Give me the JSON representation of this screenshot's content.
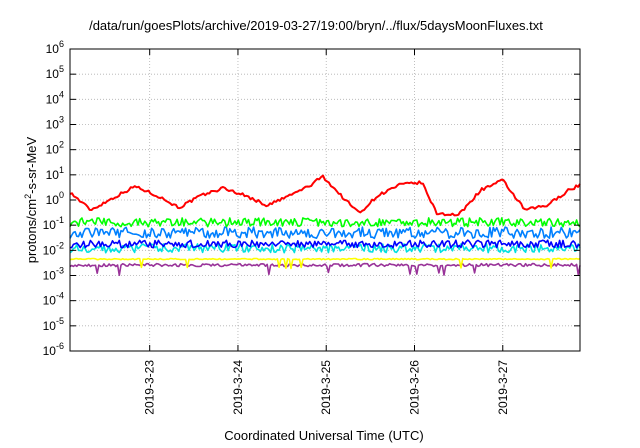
{
  "chart_data": {
    "type": "line",
    "title": "/data/run/goesPlots/archive/2019-03-27/19:00/bryn/../flux/5daysMoonFluxes.txt",
    "xlabel": "Coordinated Universal Time (UTC)",
    "ylabel": {
      "prefix": "protons/cm",
      "sup": "2",
      "suffix": "-s-sr-MeV"
    },
    "x_unit": "days (UTC)",
    "xlim": [
      "2019-03-22T02:20",
      "2019-03-27T21:00"
    ],
    "ylim": [
      1e-06,
      1000000.0
    ],
    "yscale": "log",
    "x_ticks": [
      "2019-3-23",
      "2019-3-24",
      "2019-3-25",
      "2019-3-26",
      "2019-3-27"
    ],
    "y_ticks": [
      {
        "base": "10",
        "exp": "-6"
      },
      {
        "base": "10",
        "exp": "-5"
      },
      {
        "base": "10",
        "exp": "-4"
      },
      {
        "base": "10",
        "exp": "-3"
      },
      {
        "base": "10",
        "exp": "-2"
      },
      {
        "base": "10",
        "exp": "-1"
      },
      {
        "base": "10",
        "exp": "0"
      },
      {
        "base": "10",
        "exp": "1"
      },
      {
        "base": "10",
        "exp": "2"
      },
      {
        "base": "10",
        "exp": "3"
      },
      {
        "base": "10",
        "exp": "4"
      },
      {
        "base": "10",
        "exp": "5"
      },
      {
        "base": "10",
        "exp": "6"
      }
    ],
    "grid": true,
    "series": [
      {
        "color": "#ff0000",
        "x": [
          "2019-03-22T02:20",
          "2019-03-22T08:00",
          "2019-03-22T14:00",
          "2019-03-22T20:00",
          "2019-03-23T02:00",
          "2019-03-23T08:00",
          "2019-03-23T14:00",
          "2019-03-23T20:00",
          "2019-03-24T02:00",
          "2019-03-24T08:00",
          "2019-03-24T14:00",
          "2019-03-24T20:00",
          "2019-03-24T23:00",
          "2019-03-25T04:00",
          "2019-03-25T09:00",
          "2019-03-25T14:00",
          "2019-03-25T20:00",
          "2019-03-26T02:00",
          "2019-03-26T06:00",
          "2019-03-26T12:00",
          "2019-03-26T18:00",
          "2019-03-27T00:00",
          "2019-03-27T06:00",
          "2019-03-27T12:00",
          "2019-03-27T18:00",
          "2019-03-27T21:00"
        ],
        "values": [
          2.0,
          0.4,
          1.2,
          3.5,
          1.5,
          0.5,
          1.5,
          3.0,
          1.5,
          0.6,
          1.5,
          4.0,
          9.0,
          1.5,
          0.3,
          1.5,
          4.0,
          5.0,
          0.3,
          0.25,
          2.5,
          6.0,
          0.4,
          0.6,
          2.5,
          4.0
        ]
      },
      {
        "color": "#00ff00",
        "base": 0.13,
        "jitter": 0.35
      },
      {
        "color": "#0080ff",
        "base": 0.05,
        "jitter": 0.45
      },
      {
        "color": "#00e0e0",
        "base": 0.012,
        "jitter": 0.35
      },
      {
        "color": "#0000ff",
        "base": 0.018,
        "jitter": 0.3
      },
      {
        "color": "#ffff00",
        "base": 0.0045,
        "jitter": 0.05
      },
      {
        "color": "#993399",
        "base": 0.0026,
        "jitter": 0.12
      }
    ]
  }
}
